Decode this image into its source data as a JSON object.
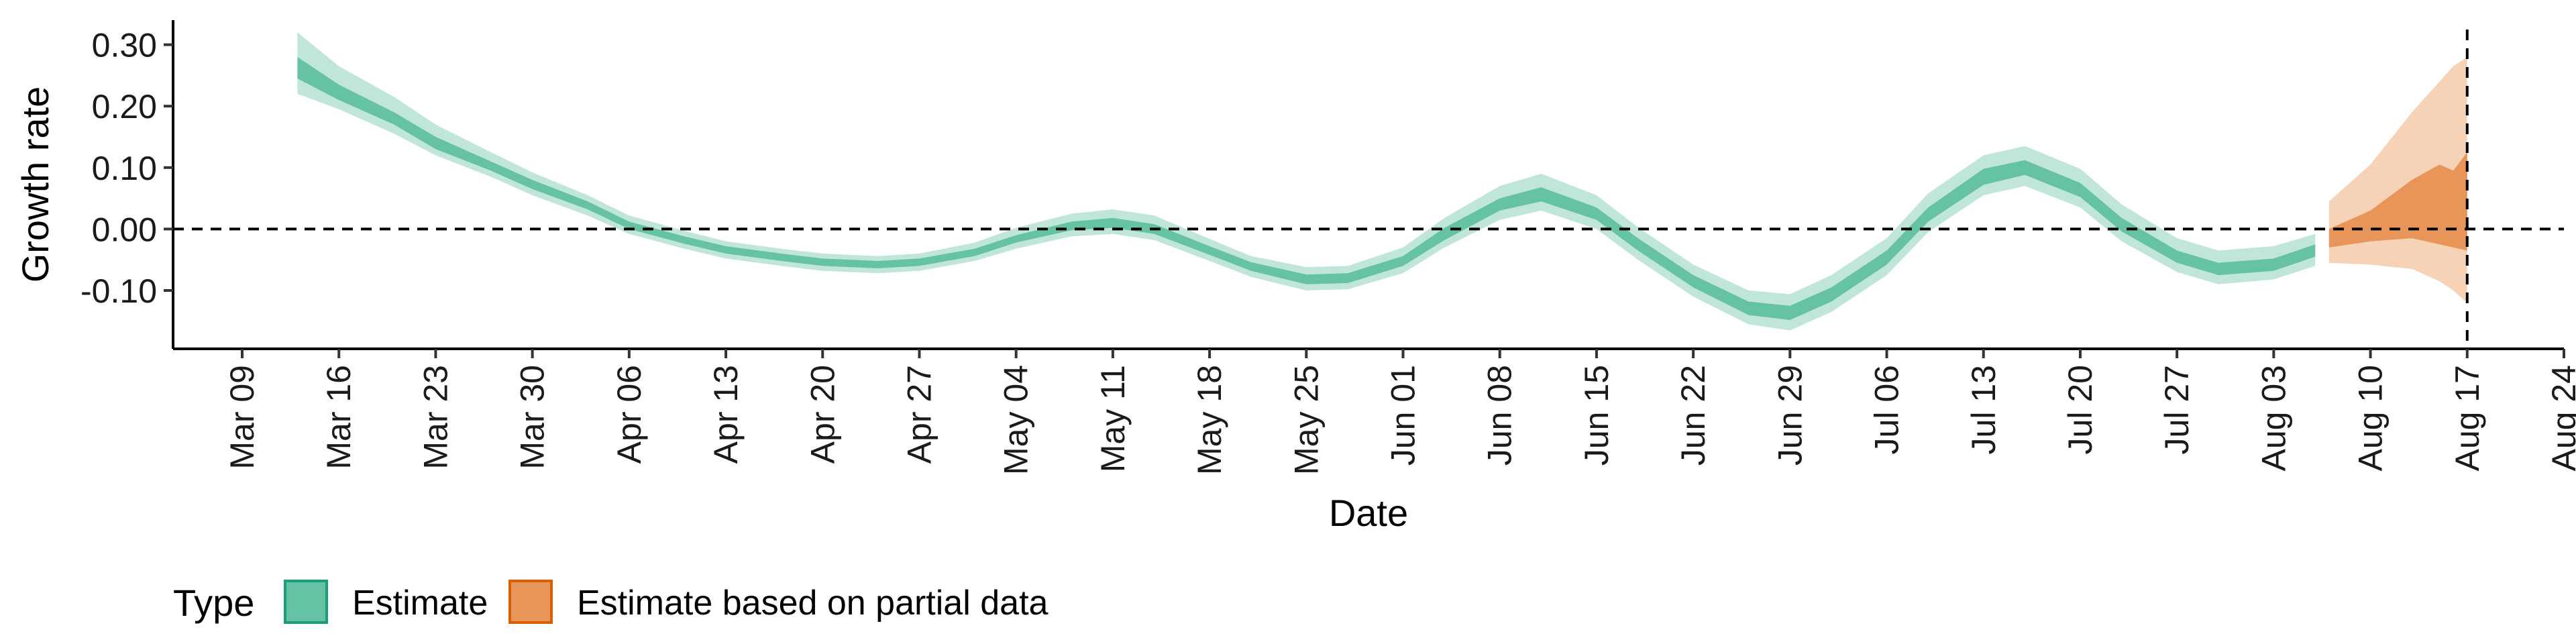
{
  "chart_data": {
    "type": "area",
    "xlabel": "Date",
    "ylabel": "Growth rate",
    "xlim": [
      "2020-03-04",
      "2020-08-24"
    ],
    "ylim": [
      -0.195,
      0.34
    ],
    "x_ticks": [
      "2020-03-09",
      "2020-03-16",
      "2020-03-23",
      "2020-03-30",
      "2020-04-06",
      "2020-04-13",
      "2020-04-20",
      "2020-04-27",
      "2020-05-04",
      "2020-05-11",
      "2020-05-18",
      "2020-05-25",
      "2020-06-01",
      "2020-06-08",
      "2020-06-15",
      "2020-06-22",
      "2020-06-29",
      "2020-07-06",
      "2020-07-13",
      "2020-07-20",
      "2020-07-27",
      "2020-08-03",
      "2020-08-10",
      "2020-08-17",
      "2020-08-24"
    ],
    "x_tick_labels": [
      "Mar 09",
      "Mar 16",
      "Mar 23",
      "Mar 30",
      "Apr 06",
      "Apr 13",
      "Apr 20",
      "Apr 27",
      "May 04",
      "May 11",
      "May 18",
      "May 25",
      "Jun 01",
      "Jun 08",
      "Jun 15",
      "Jun 22",
      "Jun 29",
      "Jul 06",
      "Jul 13",
      "Jul 20",
      "Jul 27",
      "Aug 03",
      "Aug 10",
      "Aug 17",
      "Aug 24"
    ],
    "y_ticks": [
      0.3,
      0.2,
      0.1,
      0.0,
      -0.1
    ],
    "y_tick_labels": [
      "0.30",
      "0.20",
      "0.10",
      "0.00",
      "-0.10"
    ],
    "hline": 0.0,
    "vline": "2020-08-17",
    "grid": false,
    "legend": {
      "title": "Type",
      "position": "bottom-left",
      "entries": [
        {
          "label": "Estimate",
          "fill": "#66c2a5",
          "border": "#1b9e77"
        },
        {
          "label": "Estimate based on partial data",
          "fill": "#e8955a",
          "border": "#d95f02"
        }
      ]
    },
    "series": [
      {
        "name": "Estimate",
        "color_outer": "#bfe6d9",
        "color_inner": "#66c2a5",
        "points": [
          {
            "x": "2020-03-13",
            "lo90": 0.22,
            "lo50": 0.245,
            "hi50": 0.28,
            "hi90": 0.32
          },
          {
            "x": "2020-03-16",
            "lo90": 0.195,
            "lo50": 0.21,
            "hi50": 0.235,
            "hi90": 0.265
          },
          {
            "x": "2020-03-20",
            "lo90": 0.155,
            "lo50": 0.17,
            "hi50": 0.19,
            "hi90": 0.215
          },
          {
            "x": "2020-03-23",
            "lo90": 0.12,
            "lo50": 0.13,
            "hi50": 0.15,
            "hi90": 0.17
          },
          {
            "x": "2020-03-27",
            "lo90": 0.085,
            "lo50": 0.095,
            "hi50": 0.11,
            "hi90": 0.125
          },
          {
            "x": "2020-03-30",
            "lo90": 0.055,
            "lo50": 0.065,
            "hi50": 0.08,
            "hi90": 0.092
          },
          {
            "x": "2020-04-03",
            "lo90": 0.022,
            "lo50": 0.032,
            "hi50": 0.045,
            "hi90": 0.055
          },
          {
            "x": "2020-04-06",
            "lo90": -0.008,
            "lo50": 0.0,
            "hi50": 0.012,
            "hi90": 0.022
          },
          {
            "x": "2020-04-10",
            "lo90": -0.032,
            "lo50": -0.024,
            "hi50": -0.012,
            "hi90": -0.003
          },
          {
            "x": "2020-04-13",
            "lo90": -0.048,
            "lo50": -0.04,
            "hi50": -0.028,
            "hi90": -0.02
          },
          {
            "x": "2020-04-17",
            "lo90": -0.06,
            "lo50": -0.052,
            "hi50": -0.04,
            "hi90": -0.032
          },
          {
            "x": "2020-04-20",
            "lo90": -0.068,
            "lo50": -0.06,
            "hi50": -0.048,
            "hi90": -0.04
          },
          {
            "x": "2020-04-24",
            "lo90": -0.072,
            "lo50": -0.064,
            "hi50": -0.052,
            "hi90": -0.044
          },
          {
            "x": "2020-04-27",
            "lo90": -0.068,
            "lo50": -0.06,
            "hi50": -0.048,
            "hi90": -0.04
          },
          {
            "x": "2020-05-01",
            "lo90": -0.052,
            "lo50": -0.044,
            "hi50": -0.032,
            "hi90": -0.022
          },
          {
            "x": "2020-05-04",
            "lo90": -0.032,
            "lo50": -0.022,
            "hi50": -0.01,
            "hi90": 0.002
          },
          {
            "x": "2020-05-08",
            "lo90": -0.012,
            "lo50": -0.002,
            "hi50": 0.012,
            "hi90": 0.025
          },
          {
            "x": "2020-05-11",
            "lo90": -0.008,
            "lo50": 0.002,
            "hi50": 0.018,
            "hi90": 0.032
          },
          {
            "x": "2020-05-14",
            "lo90": -0.018,
            "lo50": -0.008,
            "hi50": 0.008,
            "hi90": 0.022
          },
          {
            "x": "2020-05-18",
            "lo90": -0.052,
            "lo50": -0.042,
            "hi50": -0.028,
            "hi90": -0.016
          },
          {
            "x": "2020-05-21",
            "lo90": -0.078,
            "lo50": -0.068,
            "hi50": -0.054,
            "hi90": -0.044
          },
          {
            "x": "2020-05-25",
            "lo90": -0.1,
            "lo50": -0.09,
            "hi50": -0.074,
            "hi90": -0.062
          },
          {
            "x": "2020-05-28",
            "lo90": -0.098,
            "lo50": -0.088,
            "hi50": -0.072,
            "hi90": -0.06
          },
          {
            "x": "2020-06-01",
            "lo90": -0.072,
            "lo50": -0.06,
            "hi50": -0.044,
            "hi90": -0.03
          },
          {
            "x": "2020-06-04",
            "lo90": -0.03,
            "lo50": -0.018,
            "hi50": 0.002,
            "hi90": 0.018
          },
          {
            "x": "2020-06-08",
            "lo90": 0.015,
            "lo50": 0.03,
            "hi50": 0.05,
            "hi90": 0.07
          },
          {
            "x": "2020-06-11",
            "lo90": 0.03,
            "lo50": 0.045,
            "hi50": 0.068,
            "hi90": 0.09
          },
          {
            "x": "2020-06-15",
            "lo90": 0.0,
            "lo50": 0.015,
            "hi50": 0.035,
            "hi90": 0.055
          },
          {
            "x": "2020-06-18",
            "lo90": -0.05,
            "lo50": -0.035,
            "hi50": -0.015,
            "hi90": 0.003
          },
          {
            "x": "2020-06-22",
            "lo90": -0.11,
            "lo50": -0.095,
            "hi50": -0.075,
            "hi90": -0.058
          },
          {
            "x": "2020-06-26",
            "lo90": -0.155,
            "lo50": -0.14,
            "hi50": -0.118,
            "hi90": -0.1
          },
          {
            "x": "2020-06-29",
            "lo90": -0.165,
            "lo50": -0.148,
            "hi50": -0.125,
            "hi90": -0.106
          },
          {
            "x": "2020-07-02",
            "lo90": -0.135,
            "lo50": -0.118,
            "hi50": -0.095,
            "hi90": -0.075
          },
          {
            "x": "2020-07-06",
            "lo90": -0.075,
            "lo50": -0.058,
            "hi50": -0.035,
            "hi90": -0.015
          },
          {
            "x": "2020-07-09",
            "lo90": -0.005,
            "lo50": 0.012,
            "hi50": 0.035,
            "hi90": 0.058
          },
          {
            "x": "2020-07-13",
            "lo90": 0.055,
            "lo50": 0.072,
            "hi50": 0.098,
            "hi90": 0.12
          },
          {
            "x": "2020-07-16",
            "lo90": 0.07,
            "lo50": 0.088,
            "hi50": 0.112,
            "hi90": 0.135
          },
          {
            "x": "2020-07-20",
            "lo90": 0.035,
            "lo50": 0.052,
            "hi50": 0.075,
            "hi90": 0.098
          },
          {
            "x": "2020-07-23",
            "lo90": -0.02,
            "lo50": -0.004,
            "hi50": 0.018,
            "hi90": 0.04
          },
          {
            "x": "2020-07-27",
            "lo90": -0.07,
            "lo50": -0.055,
            "hi50": -0.035,
            "hi90": -0.015
          },
          {
            "x": "2020-07-30",
            "lo90": -0.09,
            "lo50": -0.075,
            "hi50": -0.055,
            "hi90": -0.035
          },
          {
            "x": "2020-08-03",
            "lo90": -0.082,
            "lo50": -0.068,
            "hi50": -0.048,
            "hi90": -0.028
          },
          {
            "x": "2020-08-06",
            "lo90": -0.06,
            "lo50": -0.045,
            "hi50": -0.025,
            "hi90": -0.008
          }
        ]
      },
      {
        "name": "Estimate based on partial data",
        "color_outer": "#f6d2b6",
        "color_inner": "#e8955a",
        "points": [
          {
            "x": "2020-08-07",
            "lo90": -0.055,
            "lo50": -0.03,
            "hi50": 0.0,
            "hi90": 0.045
          },
          {
            "x": "2020-08-10",
            "lo90": -0.058,
            "lo50": -0.02,
            "hi50": 0.03,
            "hi90": 0.105
          },
          {
            "x": "2020-08-13",
            "lo90": -0.065,
            "lo50": -0.015,
            "hi50": 0.08,
            "hi90": 0.19
          },
          {
            "x": "2020-08-15",
            "lo90": -0.085,
            "lo50": -0.025,
            "hi50": 0.105,
            "hi90": 0.24
          },
          {
            "x": "2020-08-16",
            "lo90": -0.1,
            "lo50": -0.03,
            "hi50": 0.095,
            "hi90": 0.265
          },
          {
            "x": "2020-08-17",
            "lo90": -0.12,
            "lo50": -0.035,
            "hi50": 0.125,
            "hi90": 0.28
          }
        ]
      }
    ]
  }
}
